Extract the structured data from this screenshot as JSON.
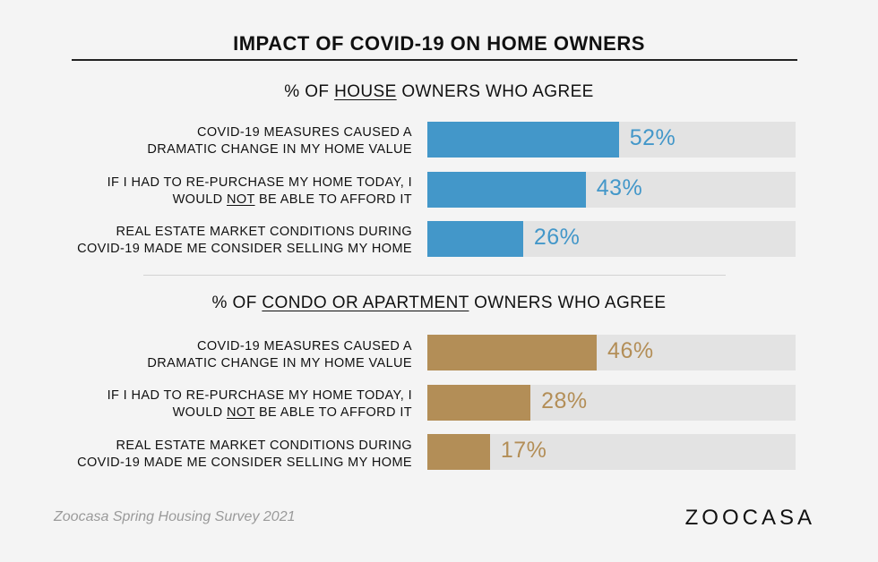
{
  "title": "IMPACT OF COVID-19 ON HOME OWNERS",
  "source": "Zoocasa Spring Housing Survey 2021",
  "logo_text": "ZOOCASA",
  "colors": {
    "house": "#4397c9",
    "condo": "#b38e57",
    "track": "#e3e3e3"
  },
  "chart_data": [
    {
      "type": "bar",
      "orientation": "horizontal",
      "title_parts": [
        "% OF ",
        "HOUSE",
        " OWNERS WHO AGREE"
      ],
      "categories": [
        "COVID-19 MEASURES CAUSED A DRAMATIC CHANGE IN MY HOME VALUE",
        "IF I HAD TO RE-PURCHASE MY HOME TODAY, I WOULD NOT BE ABLE TO AFFORD IT",
        "REAL ESTATE MARKET CONDITIONS DURING COVID-19 MADE ME CONSIDER SELLING MY HOME"
      ],
      "values": [
        52,
        43,
        26
      ],
      "labels": [
        "52%",
        "43%",
        "26%"
      ],
      "xlim": [
        0,
        100
      ],
      "grid": false
    },
    {
      "type": "bar",
      "orientation": "horizontal",
      "title_parts": [
        "% OF ",
        "CONDO OR APARTMENT",
        " OWNERS WHO AGREE"
      ],
      "categories": [
        "COVID-19 MEASURES CAUSED A DRAMATIC CHANGE IN MY HOME VALUE",
        "IF I HAD TO RE-PURCHASE MY HOME TODAY, I WOULD NOT BE ABLE TO AFFORD IT",
        "REAL ESTATE MARKET CONDITIONS DURING COVID-19 MADE ME CONSIDER SELLING MY HOME"
      ],
      "values": [
        46,
        28,
        17
      ],
      "labels": [
        "46%",
        "28%",
        "17%"
      ],
      "xlim": [
        0,
        100
      ],
      "grid": false
    }
  ]
}
